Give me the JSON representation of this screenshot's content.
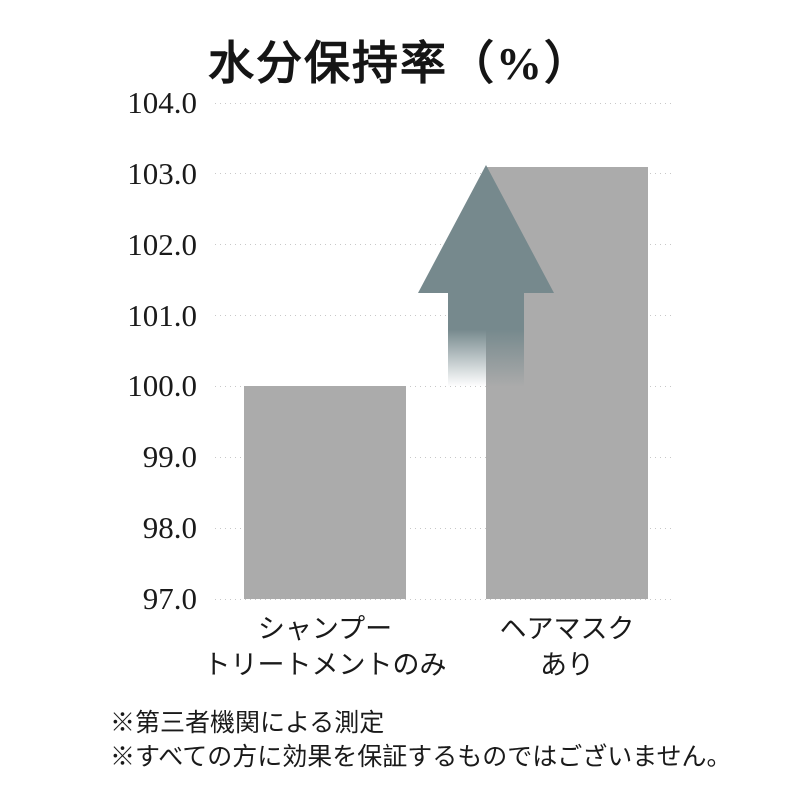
{
  "chart_data": {
    "type": "bar",
    "title": "水分保持率（%）",
    "categories": [
      {
        "lines": [
          "シャンプー",
          "トリートメントのみ"
        ]
      },
      {
        "lines": [
          "ヘアマスク",
          "あり"
        ]
      }
    ],
    "values": [
      100.0,
      103.1
    ],
    "ylim": [
      97.0,
      104.0
    ],
    "ytick_labels": [
      "104.0",
      "103.0",
      "102.0",
      "101.0",
      "100.0",
      "99.0",
      "98.0",
      "97.0"
    ],
    "xlabel": "",
    "ylabel": "",
    "grid": "horizontal-dotted",
    "legend": "none",
    "bar_color": "#ababab",
    "annotation": {
      "type": "up-arrow",
      "from_value": 100.0,
      "to_value": 103.1,
      "color": "#76898d",
      "tail": "fades to transparent toward bottom"
    }
  },
  "footnotes": [
    "※第三者機関による測定",
    "※すべての方に効果を保証するものではございません。"
  ],
  "colors": {
    "background": "#ffffff",
    "text": "#1a1a1a",
    "grid": "#c8c8c8",
    "bar": "#ababab",
    "arrow": "#76898d"
  }
}
